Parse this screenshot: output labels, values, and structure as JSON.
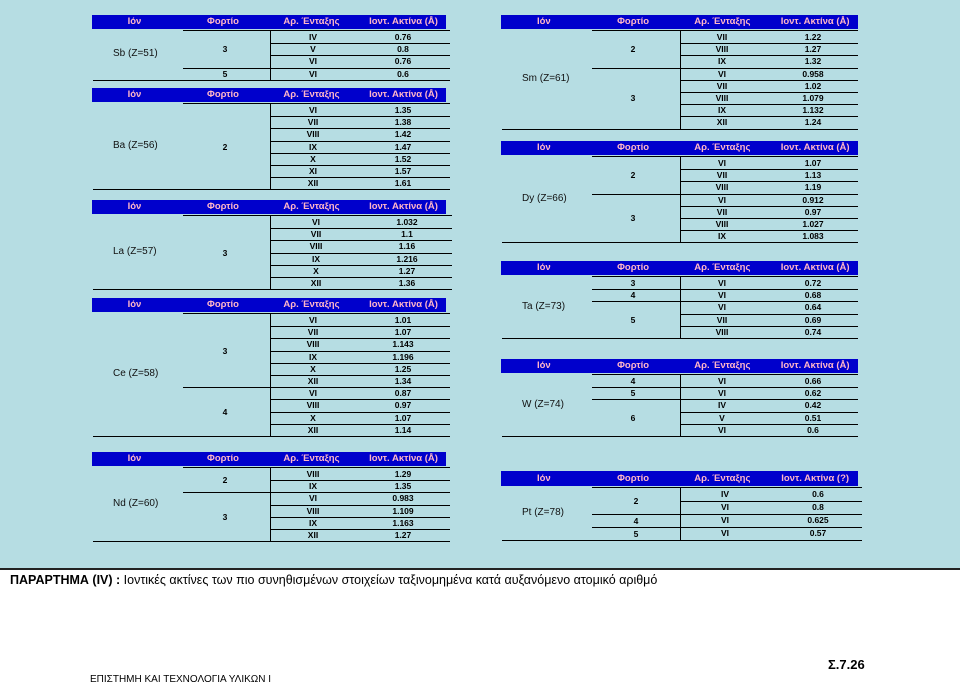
{
  "headers": [
    "Ιόν",
    "Φορτίο",
    "Αρ. Ένταξης",
    "Ιοντ. Ακτίνα (Å)"
  ],
  "headers_pt": [
    "Ιόν",
    "Φορτίο",
    "Αρ. Ένταξης",
    "Ιοντ. Ακτίνα (?)"
  ],
  "tables": [
    {
      "id": "sb",
      "ion": "Sb (Z=51)",
      "groups": [
        {
          "charge": "3",
          "rows": [
            [
              "IV",
              "0.76"
            ],
            [
              "V",
              "0.8"
            ],
            [
              "VI",
              "0.76"
            ]
          ]
        },
        {
          "charge": "5",
          "rows": [
            [
              "VI",
              "0.6"
            ]
          ]
        }
      ]
    },
    {
      "id": "ba",
      "ion": "Ba (Z=56)",
      "groups": [
        {
          "charge": "2",
          "rows": [
            [
              "VI",
              "1.35"
            ],
            [
              "VII",
              "1.38"
            ],
            [
              "VIII",
              "1.42"
            ],
            [
              "IX",
              "1.47"
            ],
            [
              "X",
              "1.52"
            ],
            [
              "XI",
              "1.57"
            ],
            [
              "XII",
              "1.61"
            ]
          ]
        }
      ]
    },
    {
      "id": "la",
      "ion": "La (Z=57)",
      "groups": [
        {
          "charge": "3",
          "rows": [
            [
              "VI",
              "1.032"
            ],
            [
              "VII",
              "1.1"
            ],
            [
              "VIII",
              "1.16"
            ],
            [
              "IX",
              "1.216"
            ],
            [
              "X",
              "1.27"
            ],
            [
              "XII",
              "1.36"
            ]
          ]
        }
      ]
    },
    {
      "id": "ce",
      "ion": "Ce (Z=58)",
      "groups": [
        {
          "charge": "3",
          "rows": [
            [
              "VI",
              "1.01"
            ],
            [
              "VII",
              "1.07"
            ],
            [
              "VIII",
              "1.143"
            ],
            [
              "IX",
              "1.196"
            ],
            [
              "X",
              "1.25"
            ],
            [
              "XII",
              "1.34"
            ]
          ]
        },
        {
          "charge": "4",
          "rows": [
            [
              "VI",
              "0.87"
            ],
            [
              "VIII",
              "0.97"
            ],
            [
              "X",
              "1.07"
            ],
            [
              "XII",
              "1.14"
            ]
          ]
        }
      ]
    },
    {
      "id": "nd",
      "ion": "Nd (Z=60)",
      "groups": [
        {
          "charge": "2",
          "rows": [
            [
              "VIII",
              "1.29"
            ],
            [
              "IX",
              "1.35"
            ]
          ]
        },
        {
          "charge": "3",
          "rows": [
            [
              "VI",
              "0.983"
            ],
            [
              "VIII",
              "1.109"
            ],
            [
              "IX",
              "1.163"
            ],
            [
              "XII",
              "1.27"
            ]
          ]
        }
      ]
    },
    {
      "id": "sm",
      "ion": "Sm (Z=61)",
      "groups": [
        {
          "charge": "2",
          "rows": [
            [
              "VII",
              "1.22"
            ],
            [
              "VIII",
              "1.27"
            ],
            [
              "IX",
              "1.32"
            ]
          ]
        },
        {
          "charge": "3",
          "rows": [
            [
              "VI",
              "0.958"
            ],
            [
              "VII",
              "1.02"
            ],
            [
              "VIII",
              "1.079"
            ],
            [
              "IX",
              "1.132"
            ],
            [
              "XII",
              "1.24"
            ]
          ]
        }
      ]
    },
    {
      "id": "dy",
      "ion": "Dy (Z=66)",
      "groups": [
        {
          "charge": "2",
          "rows": [
            [
              "VI",
              "1.07"
            ],
            [
              "VII",
              "1.13"
            ],
            [
              "VIII",
              "1.19"
            ]
          ]
        },
        {
          "charge": "3",
          "rows": [
            [
              "VI",
              "0.912"
            ],
            [
              "VII",
              "0.97"
            ],
            [
              "VIII",
              "1.027"
            ],
            [
              "IX",
              "1.083"
            ]
          ]
        }
      ]
    },
    {
      "id": "ta",
      "ion": "Ta (Z=73)",
      "groups": [
        {
          "charge": "3",
          "rows": [
            [
              "VI",
              "0.72"
            ]
          ]
        },
        {
          "charge": "4",
          "rows": [
            [
              "VI",
              "0.68"
            ]
          ]
        },
        {
          "charge": "5",
          "rows": [
            [
              "VI",
              "0.64"
            ],
            [
              "VII",
              "0.69"
            ],
            [
              "VIII",
              "0.74"
            ]
          ]
        }
      ]
    },
    {
      "id": "w",
      "ion": "W (Z=74)",
      "groups": [
        {
          "charge": "4",
          "rows": [
            [
              "VI",
              "0.66"
            ]
          ]
        },
        {
          "charge": "5",
          "rows": [
            [
              "VI",
              "0.62"
            ]
          ]
        },
        {
          "charge": "6",
          "rows": [
            [
              "IV",
              "0.42"
            ],
            [
              "V",
              "0.51"
            ],
            [
              "VI",
              "0.6"
            ]
          ]
        }
      ]
    },
    {
      "id": "pt",
      "ion": "Pt (Z=78)",
      "groups": [
        {
          "charge": "2",
          "rows": [
            [
              "IV",
              "0.6"
            ],
            [
              "VI",
              "0.8"
            ]
          ]
        },
        {
          "charge": "4",
          "rows": [
            [
              "VI",
              "0.625"
            ]
          ]
        },
        {
          "charge": "5",
          "rows": [
            [
              "VI",
              "0.57"
            ]
          ]
        }
      ]
    }
  ],
  "caption": {
    "label": "ΠΑΡΑΡΤΗΜΑ (IV) :",
    "text": " Ιοντικές ακτίνες των πιο συνηθισμένων στοιχείων ταξινομημένα κατά αυξανόμενο ατομικό αριθμό"
  },
  "footer": {
    "course": "ΕΠΙΣΤΗΜΗ ΚΑΙ ΤΕΧΝΟΛΟΓΙΑ ΥΛΙΚΩΝ Ι",
    "page": "Σ.7.26"
  }
}
